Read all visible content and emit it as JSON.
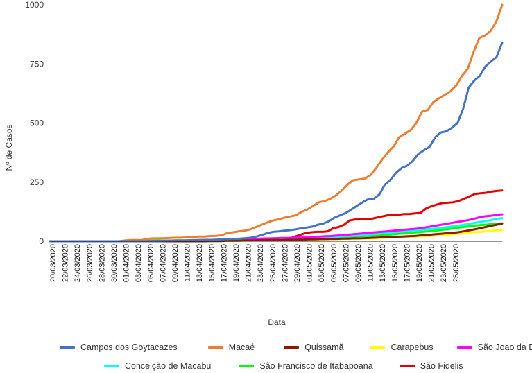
{
  "chart_data": {
    "type": "line",
    "xlabel": "Data",
    "ylabel": "Nº de Casos",
    "ylim": [
      0,
      1000
    ],
    "yticks": [
      0,
      250,
      500,
      750,
      1000
    ],
    "grid": false,
    "legend_position": "bottom",
    "x_tick_labels": [
      "20/03/2020",
      "22/03/2020",
      "24/03/2020",
      "26/03/2020",
      "28/03/2020",
      "30/03/2020",
      "01/04/2020",
      "03/04/2020",
      "05/04/2020",
      "07/04/2020",
      "09/04/2020",
      "11/04/2020",
      "13/04/2020",
      "15/04/2020",
      "17/04/2020",
      "19/04/2020",
      "21/04/2020",
      "23/04/2020",
      "25/04/2020",
      "27/04/2020",
      "29/04/2020",
      "01/05/2020",
      "03/05/2020",
      "05/05/2020",
      "07/05/2020",
      "09/05/2020",
      "11/05/2020",
      "13/05/2020",
      "15/05/2020",
      "17/05/2020",
      "19/05/2020",
      "21/05/2020",
      "23/05/2020",
      "25/05/2020"
    ],
    "series": [
      {
        "name": "Campos dos Goytacazes",
        "color": "#4472C4",
        "values": [
          0,
          0,
          0,
          0,
          0,
          0,
          0,
          0,
          0,
          0,
          0,
          0,
          0,
          0,
          0,
          0,
          0,
          0,
          0,
          1,
          1,
          2,
          2,
          3,
          3,
          4,
          4,
          5,
          6,
          6,
          7,
          8,
          9,
          10,
          11,
          13,
          15,
          20,
          27,
          35,
          40,
          42,
          45,
          47,
          50,
          55,
          58,
          62,
          70,
          75,
          85,
          100,
          110,
          120,
          135,
          150,
          165,
          178,
          180,
          198,
          240,
          260,
          290,
          310,
          320,
          340,
          370,
          385,
          400,
          440,
          460,
          465,
          480,
          500,
          560,
          650,
          680,
          700,
          740,
          760,
          780,
          840
        ]
      },
      {
        "name": "Macaé",
        "color": "#ED7D31",
        "values": [
          0,
          0,
          0,
          0,
          0,
          0,
          0,
          0,
          0,
          0,
          0,
          0,
          0,
          3,
          5,
          5,
          5,
          10,
          12,
          12,
          13,
          14,
          15,
          15,
          17,
          18,
          20,
          20,
          22,
          23,
          25,
          35,
          38,
          42,
          45,
          50,
          60,
          70,
          80,
          88,
          93,
          100,
          105,
          110,
          125,
          135,
          150,
          165,
          170,
          180,
          195,
          215,
          240,
          258,
          262,
          265,
          280,
          310,
          345,
          375,
          400,
          440,
          455,
          470,
          500,
          548,
          555,
          590,
          605,
          620,
          635,
          660,
          700,
          730,
          800,
          860,
          870,
          890,
          930,
          1000
        ]
      },
      {
        "name": "Quissamã",
        "color": "#8B1A00",
        "values": [
          0,
          0,
          0,
          0,
          0,
          0,
          0,
          0,
          0,
          0,
          0,
          0,
          0,
          0,
          0,
          0,
          0,
          0,
          0,
          0,
          0,
          0,
          0,
          0,
          0,
          0,
          0,
          0,
          0,
          1,
          1,
          1,
          2,
          2,
          2,
          3,
          3,
          3,
          4,
          4,
          5,
          5,
          5,
          6,
          6,
          7,
          7,
          8,
          8,
          9,
          9,
          10,
          10,
          11,
          11,
          12,
          12,
          13,
          14,
          15,
          16,
          17,
          18,
          19,
          20,
          21,
          22,
          24,
          26,
          28,
          30,
          32,
          34,
          36,
          38,
          42,
          46,
          50,
          55,
          60,
          65,
          70,
          75
        ]
      },
      {
        "name": "Carapebus",
        "color": "#FFFF00",
        "values": [
          0,
          0,
          0,
          0,
          0,
          0,
          0,
          0,
          0,
          0,
          0,
          0,
          0,
          0,
          0,
          0,
          0,
          0,
          0,
          0,
          0,
          0,
          0,
          0,
          0,
          0,
          0,
          0,
          0,
          0,
          1,
          1,
          1,
          1,
          2,
          2,
          2,
          3,
          3,
          3,
          4,
          4,
          5,
          5,
          5,
          6,
          6,
          7,
          7,
          8,
          8,
          9,
          9,
          10,
          10,
          11,
          11,
          12,
          12,
          13,
          14,
          15,
          16,
          17,
          18,
          19,
          20,
          21,
          22,
          23,
          24,
          26,
          28,
          30,
          32,
          34,
          36,
          38,
          40,
          42,
          44,
          46,
          48
        ]
      },
      {
        "name": "São Joao da Barra",
        "color": "#FF00FF",
        "values": [
          0,
          0,
          0,
          0,
          0,
          0,
          0,
          0,
          0,
          0,
          0,
          0,
          0,
          0,
          0,
          0,
          0,
          0,
          1,
          1,
          1,
          2,
          2,
          2,
          3,
          3,
          4,
          4,
          5,
          5,
          6,
          6,
          7,
          8,
          8,
          9,
          10,
          10,
          11,
          12,
          12,
          13,
          14,
          14,
          15,
          16,
          17,
          18,
          19,
          20,
          21,
          22,
          24,
          26,
          28,
          30,
          32,
          34,
          36,
          38,
          40,
          42,
          44,
          46,
          48,
          50,
          52,
          55,
          58,
          62,
          66,
          70,
          74,
          78,
          82,
          86,
          90,
          96,
          102,
          106,
          108,
          112,
          114
        ]
      },
      {
        "name": "Conceição de Macabu",
        "color": "#00FFFF",
        "values": [
          0,
          0,
          0,
          0,
          0,
          0,
          0,
          0,
          0,
          0,
          0,
          0,
          0,
          0,
          0,
          0,
          0,
          0,
          0,
          0,
          0,
          0,
          0,
          1,
          1,
          1,
          2,
          2,
          3,
          3,
          4,
          4,
          5,
          5,
          6,
          6,
          7,
          7,
          8,
          8,
          9,
          10,
          10,
          11,
          12,
          12,
          13,
          14,
          15,
          16,
          17,
          18,
          19,
          20,
          21,
          22,
          24,
          26,
          28,
          30,
          32,
          34,
          36,
          38,
          40,
          42,
          44,
          46,
          48,
          50,
          52,
          54,
          57,
          60,
          63,
          66,
          70,
          74,
          78,
          82,
          86,
          90,
          95,
          98
        ]
      },
      {
        "name": "São Francisco de Itabapoana",
        "color": "#00FF00",
        "values": [
          0,
          0,
          0,
          0,
          0,
          0,
          0,
          0,
          0,
          0,
          0,
          0,
          0,
          0,
          2,
          2,
          2,
          2,
          2,
          3,
          3,
          3,
          3,
          4,
          4,
          4,
          5,
          5,
          5,
          5,
          6,
          6,
          6,
          7,
          7,
          7,
          8,
          8,
          8,
          9,
          9,
          10,
          10,
          11,
          11,
          12,
          12,
          13,
          14,
          14,
          15,
          16,
          17,
          18,
          19,
          20,
          21,
          22,
          23,
          24,
          25,
          27,
          29,
          31,
          33,
          35,
          37,
          39,
          41,
          43,
          45,
          48,
          51,
          54,
          57,
          60,
          63,
          66,
          68,
          70,
          72,
          74,
          76
        ]
      },
      {
        "name": "São Fidelis",
        "color": "#E60000",
        "values": [
          0,
          0,
          0,
          0,
          0,
          0,
          0,
          0,
          0,
          0,
          0,
          0,
          0,
          0,
          0,
          0,
          0,
          0,
          0,
          0,
          0,
          1,
          1,
          1,
          2,
          2,
          2,
          3,
          3,
          3,
          4,
          4,
          5,
          5,
          6,
          6,
          6,
          7,
          7,
          8,
          8,
          9,
          10,
          10,
          12,
          20,
          28,
          35,
          38,
          40,
          40,
          42,
          55,
          60,
          70,
          88,
          92,
          93,
          95,
          95,
          100,
          105,
          110,
          110,
          112,
          115,
          115,
          118,
          120,
          138,
          148,
          155,
          162,
          163,
          165,
          170,
          180,
          190,
          200,
          203,
          205,
          210,
          213,
          215
        ]
      }
    ]
  }
}
